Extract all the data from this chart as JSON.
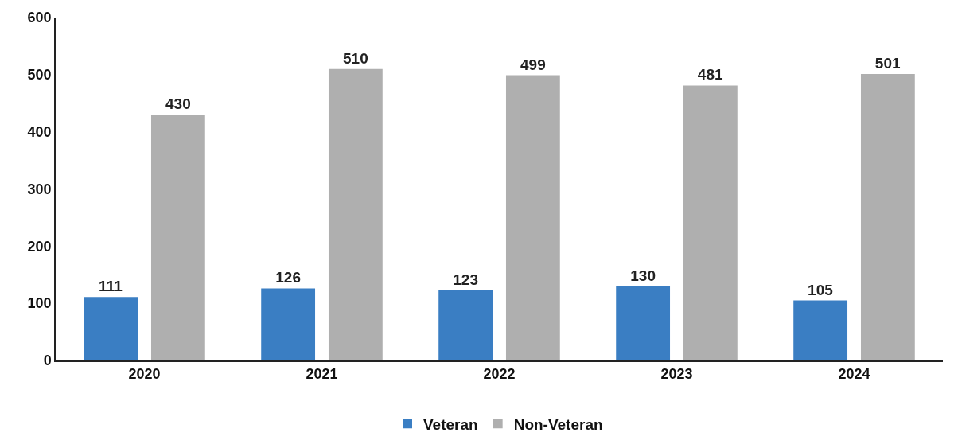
{
  "chart_data": {
    "type": "bar",
    "categories": [
      "2020",
      "2021",
      "2022",
      "2023",
      "2024"
    ],
    "series": [
      {
        "name": "Veteran",
        "color": "#3a7ec3",
        "values": [
          111,
          126,
          123,
          130,
          105
        ]
      },
      {
        "name": "Non-Veteran",
        "color": "#afafaf",
        "values": [
          430,
          510,
          499,
          481,
          501
        ]
      }
    ],
    "ylim": [
      0,
      600
    ],
    "yticks": [
      0,
      100,
      200,
      300,
      400,
      500,
      600
    ],
    "legend": "bottom",
    "data_labels": true
  }
}
